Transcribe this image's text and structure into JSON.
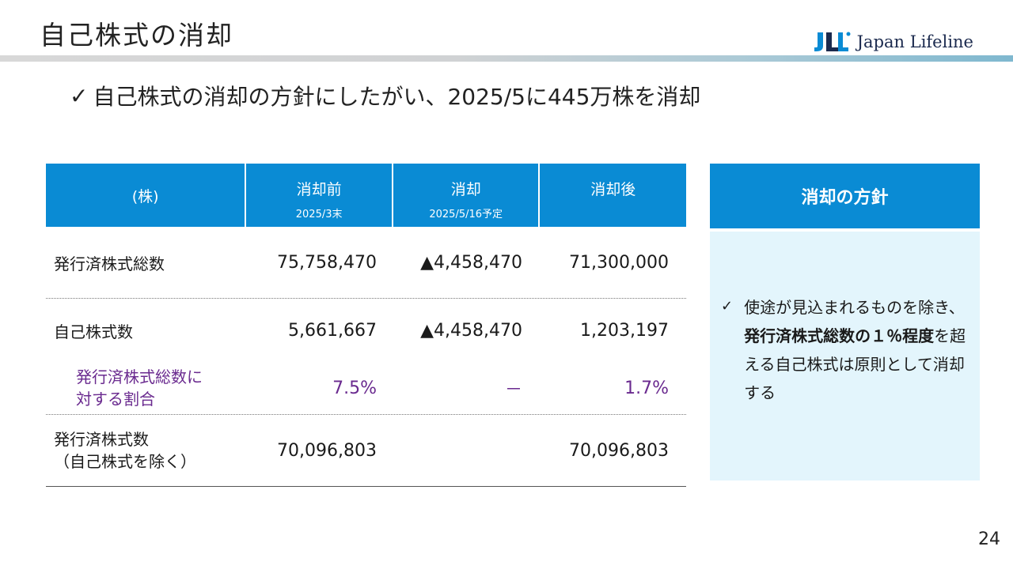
{
  "header": {
    "title": "自己株式の消却",
    "logo_text": "Japan Lifeline",
    "logo_mark": "JLL"
  },
  "headline": {
    "check": "✓",
    "text": "自己株式の消却の方針にしたがい、2025/5に445万株を消却"
  },
  "table": {
    "columns": [
      {
        "main": "(株)",
        "sub": ""
      },
      {
        "main": "消却前",
        "sub": "2025/3末"
      },
      {
        "main": "消却",
        "sub": "2025/5/16予定"
      },
      {
        "main": "消却後",
        "sub": ""
      }
    ],
    "rows": [
      {
        "label": "発行済株式総数",
        "before": "75,758,470",
        "retired": "▲4,458,470",
        "after": "71,300,000"
      },
      {
        "label": "自己株式数",
        "before": "5,661,667",
        "retired": "▲4,458,470",
        "after": "1,203,197"
      },
      {
        "label_line1": "発行済株式総数に",
        "label_line2": "対する割合",
        "before": "7.5%",
        "retired": "－",
        "after": "1.7%"
      },
      {
        "label_line1": "発行済株式数",
        "label_line2": "（自己株式を除く）",
        "before": "70,096,803",
        "retired": "",
        "after": "70,096,803"
      }
    ]
  },
  "policy": {
    "title": "消却の方針",
    "check": "✓",
    "text_part1": "使途が見込まれるものを除き、",
    "text_bold": "発行済株式総数の１％程度",
    "text_part2": "を超える自己株式は原則として消却する"
  },
  "page_number": "24",
  "colors": {
    "header_blue": "#0a8bd4",
    "policy_bg": "#e3f5fc",
    "ratio_purple": "#6a2a8f",
    "logo_blue": "#0a8bd4",
    "logo_navy": "#1b2a4e"
  }
}
